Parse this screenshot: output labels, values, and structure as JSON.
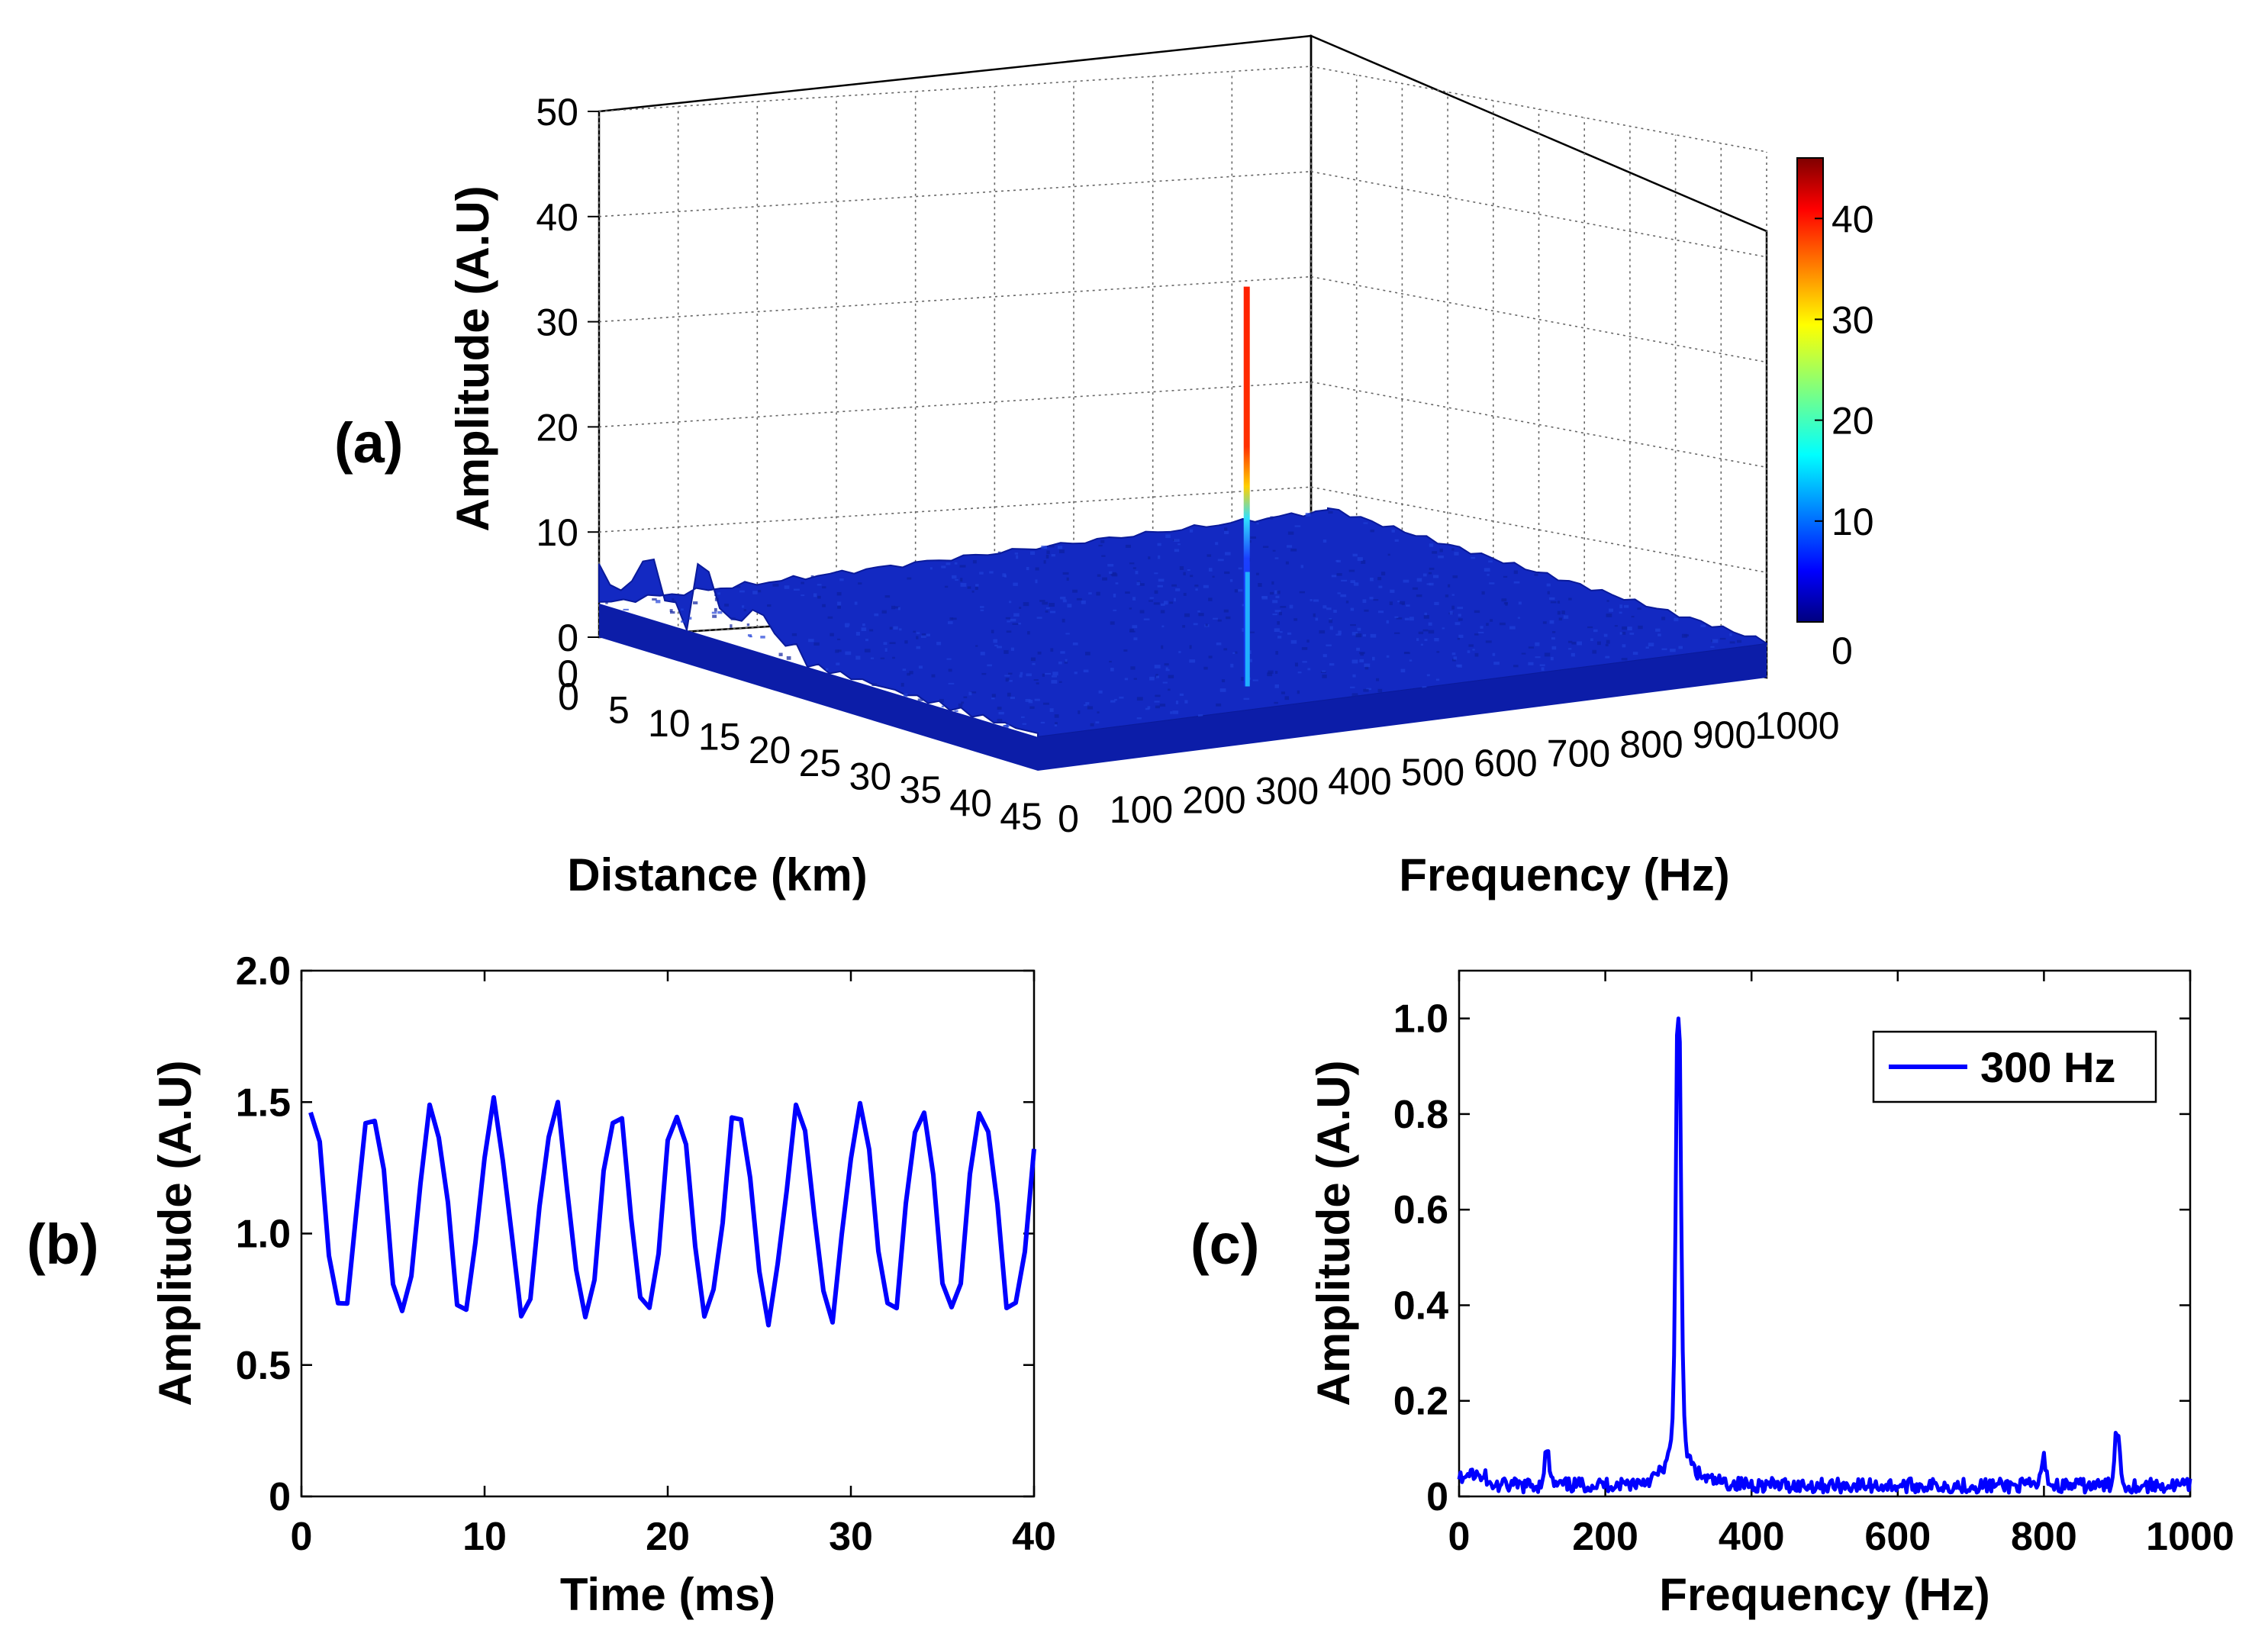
{
  "figure": {
    "panel_a_label": "(a)",
    "panel_b_label": "(b)",
    "panel_c_label": "(c)"
  },
  "colors": {
    "line": "#0000ff",
    "surface": "#0a22c0",
    "peak_top": "#ff2a00"
  },
  "chart_data": [
    {
      "id": "a",
      "type": "surface3d",
      "title": "",
      "xlabel": "Distance (km)",
      "ylabel": "Frequency (Hz)",
      "zlabel": "Amplitude (A.U)",
      "x_ticks": [
        "0",
        "5",
        "10",
        "15",
        "20",
        "25",
        "30",
        "35",
        "40",
        "45"
      ],
      "y_ticks": [
        "0",
        "100",
        "200",
        "300",
        "400",
        "500",
        "600",
        "700",
        "800",
        "900",
        "1000"
      ],
      "z_ticks": [
        "0",
        "10",
        "20",
        "30",
        "40",
        "50"
      ],
      "xlim": [
        0,
        45
      ],
      "ylim": [
        0,
        1000
      ],
      "zlim": [
        0,
        50
      ],
      "peak": {
        "distance_km": 44,
        "frequency_hz": 300,
        "amplitude": 46
      },
      "colorbar": {
        "ticks": [
          "0",
          "10",
          "20",
          "30",
          "40"
        ],
        "range": [
          0,
          46
        ],
        "colormap": "jet"
      }
    },
    {
      "id": "b",
      "type": "line",
      "title": "",
      "xlabel": "Time (ms)",
      "ylabel": "Amplitude (A.U)",
      "xlim": [
        0,
        40
      ],
      "ylim": [
        0,
        2.0
      ],
      "x_ticks": [
        "0",
        "10",
        "20",
        "30",
        "40"
      ],
      "y_ticks": [
        "0",
        "0.5",
        "1.0",
        "1.5",
        "2.0"
      ],
      "grid": false,
      "series": [
        {
          "name": "",
          "signal": "sine",
          "frequency_hz": 300,
          "offset": 1.08,
          "amplitude": 0.4,
          "sample_period_ms": 0.5
        }
      ]
    },
    {
      "id": "c",
      "type": "line",
      "title": "",
      "xlabel": "Frequency (Hz)",
      "ylabel": "Amplitude (A.U)",
      "xlim": [
        0,
        1000
      ],
      "ylim": [
        0,
        1.1
      ],
      "x_ticks": [
        "0",
        "200",
        "400",
        "600",
        "800",
        "1000"
      ],
      "y_ticks": [
        "0",
        "0.2",
        "0.4",
        "0.6",
        "0.8",
        "1.0"
      ],
      "grid": false,
      "legend": {
        "position": "top-right",
        "entries": [
          "300 Hz"
        ]
      },
      "series": [
        {
          "name": "300 Hz",
          "peaks": [
            {
              "x": 300,
              "y": 1.0
            },
            {
              "x": 900,
              "y": 0.12
            },
            {
              "x": 120,
              "y": 0.07
            },
            {
              "x": 800,
              "y": 0.055
            }
          ],
          "noise_floor": 0.025
        }
      ]
    }
  ]
}
